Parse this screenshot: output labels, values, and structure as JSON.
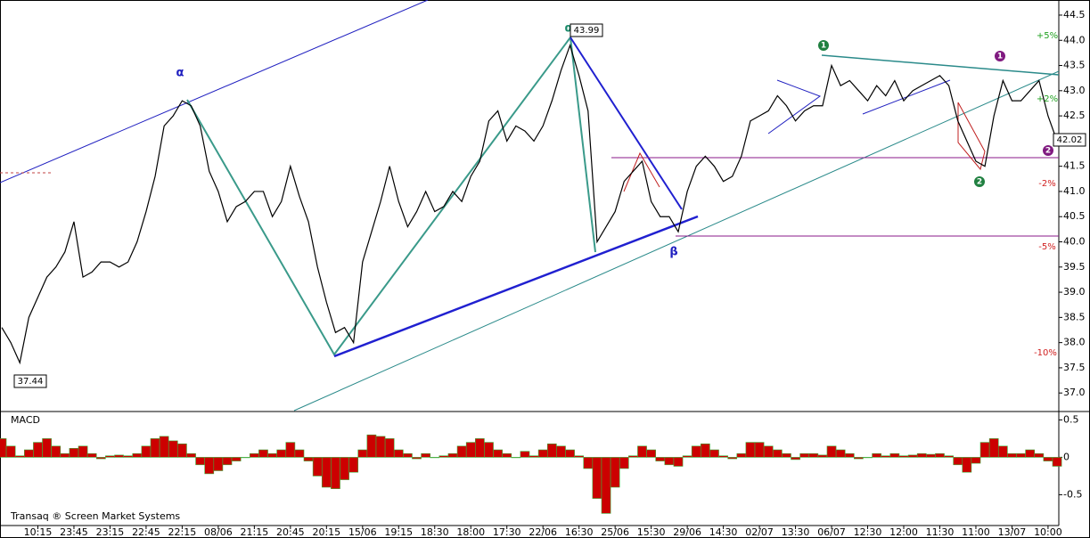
{
  "chart_data": [
    {
      "type": "line",
      "color": "#000000",
      "categories": [
        null,
        null,
        null,
        null,
        "10:15",
        null,
        null,
        null,
        "23:45",
        null,
        null,
        null,
        "23:15",
        null,
        null,
        null,
        "22:45",
        null,
        null,
        null,
        "22:15",
        null,
        null,
        null,
        "08/06",
        null,
        null,
        null,
        "21:15",
        null,
        null,
        null,
        "20:45",
        null,
        null,
        null,
        "20:15",
        null,
        null,
        null,
        "15/06",
        null,
        null,
        null,
        "19:15",
        null,
        null,
        null,
        "18:30",
        null,
        null,
        null,
        "18:00",
        null,
        null,
        null,
        "17:30",
        null,
        null,
        null,
        "22/06",
        null,
        null,
        null,
        "16:30",
        null,
        null,
        null,
        "25/06",
        null,
        null,
        null,
        "15:30",
        null,
        null,
        null,
        "29/06",
        null,
        null,
        null,
        "14:30",
        null,
        null,
        null,
        "02/07",
        null,
        null,
        null,
        "13:30",
        null,
        null,
        null,
        "06/07",
        null,
        null,
        null,
        "12:30",
        null,
        null,
        null,
        "12:00",
        null,
        null,
        null,
        "11:30",
        null,
        null,
        null,
        "11:00",
        null,
        null,
        null,
        "13/07",
        null,
        null,
        null,
        "10:00",
        null
      ],
      "values": [
        38.3,
        38.0,
        37.6,
        38.5,
        38.9,
        39.3,
        39.5,
        39.8,
        40.4,
        39.3,
        39.4,
        39.6,
        39.6,
        39.5,
        39.6,
        40.0,
        40.6,
        41.3,
        42.3,
        42.5,
        42.8,
        42.7,
        42.3,
        41.4,
        41.0,
        40.4,
        40.7,
        40.8,
        41.0,
        41.0,
        40.5,
        40.8,
        41.5,
        40.9,
        40.4,
        39.5,
        38.8,
        38.2,
        38.3,
        38.0,
        39.6,
        40.2,
        40.8,
        41.5,
        40.8,
        40.3,
        40.6,
        41.0,
        40.6,
        40.7,
        41.0,
        40.8,
        41.3,
        41.6,
        42.4,
        42.6,
        42.0,
        42.3,
        42.2,
        42.0,
        42.3,
        42.8,
        43.4,
        43.9,
        43.3,
        42.6,
        40.0,
        40.3,
        40.6,
        41.2,
        41.4,
        41.6,
        40.8,
        40.5,
        40.5,
        40.2,
        41.0,
        41.5,
        41.7,
        41.5,
        41.2,
        41.3,
        41.7,
        42.4,
        42.5,
        42.6,
        42.9,
        42.7,
        42.4,
        42.6,
        42.7,
        42.7,
        43.5,
        43.1,
        43.2,
        43.0,
        42.8,
        43.1,
        42.9,
        43.2,
        42.8,
        43.0,
        43.1,
        43.2,
        43.3,
        43.1,
        42.4,
        42.0,
        41.6,
        41.5,
        42.5,
        43.2,
        42.8,
        42.8,
        43.0,
        43.2,
        42.5,
        42.0
      ],
      "ylim": [
        36.65,
        44.8
      ],
      "yticks": [
        {
          "value": 37,
          "label": "37.0"
        },
        37.5,
        {
          "value": 38,
          "label": "38.0"
        },
        38.5,
        {
          "value": 39,
          "label": "39.0"
        },
        39.5,
        {
          "value": 40,
          "label": "40.0"
        },
        40.5,
        {
          "value": 41,
          "label": "41.0"
        },
        41.5,
        {
          "value": 42,
          "label": "42.0"
        },
        42.5,
        {
          "value": 43,
          "label": "43.0"
        },
        43.5,
        {
          "value": 44,
          "label": "44.0"
        },
        44.5
      ],
      "annotations": [
        "α",
        "α",
        "β",
        "43.99",
        "37.44",
        "42.02",
        "+5%",
        "+2%",
        "-2%",
        "-5%",
        "-10%",
        "1",
        "2",
        "1",
        "2"
      ]
    },
    {
      "type": "area",
      "title": "MACD",
      "color": "#cc0000",
      "values": [
        0.25,
        0.15,
        0.02,
        0.1,
        0.2,
        0.25,
        0.15,
        0.05,
        0.12,
        0.15,
        0.05,
        -0.02,
        0.02,
        0.03,
        0.02,
        0.05,
        0.15,
        0.25,
        0.28,
        0.22,
        0.18,
        0.05,
        -0.1,
        -0.22,
        -0.18,
        -0.1,
        -0.05,
        0.0,
        0.05,
        0.1,
        0.05,
        0.1,
        0.2,
        0.1,
        -0.05,
        -0.25,
        -0.4,
        -0.42,
        -0.3,
        -0.2,
        0.1,
        0.3,
        0.28,
        0.25,
        0.1,
        0.05,
        -0.02,
        0.05,
        0.0,
        0.02,
        0.05,
        0.15,
        0.2,
        0.25,
        0.2,
        0.1,
        0.05,
        0.0,
        0.08,
        0.02,
        0.1,
        0.18,
        0.15,
        0.1,
        0.02,
        -0.15,
        -0.55,
        -0.75,
        -0.4,
        -0.15,
        0.02,
        0.15,
        0.1,
        -0.05,
        -0.1,
        -0.12,
        0.02,
        0.15,
        0.18,
        0.1,
        0.02,
        -0.02,
        0.05,
        0.2,
        0.2,
        0.15,
        0.1,
        0.05,
        -0.03,
        0.05,
        0.05,
        0.03,
        0.15,
        0.1,
        0.05,
        -0.02,
        0.0,
        0.05,
        0.02,
        0.05,
        0.02,
        0.03,
        0.05,
        0.04,
        0.05,
        0.02,
        -0.1,
        -0.2,
        -0.08,
        0.2,
        0.25,
        0.15,
        0.05,
        0.05,
        0.1,
        0.05,
        -0.05,
        -0.12
      ],
      "ylim": [
        -0.9,
        0.6
      ],
      "yticks": [
        0.5,
        0,
        -0.5
      ]
    }
  ],
  "footer": "Transaq ® Screen Market Systems"
}
